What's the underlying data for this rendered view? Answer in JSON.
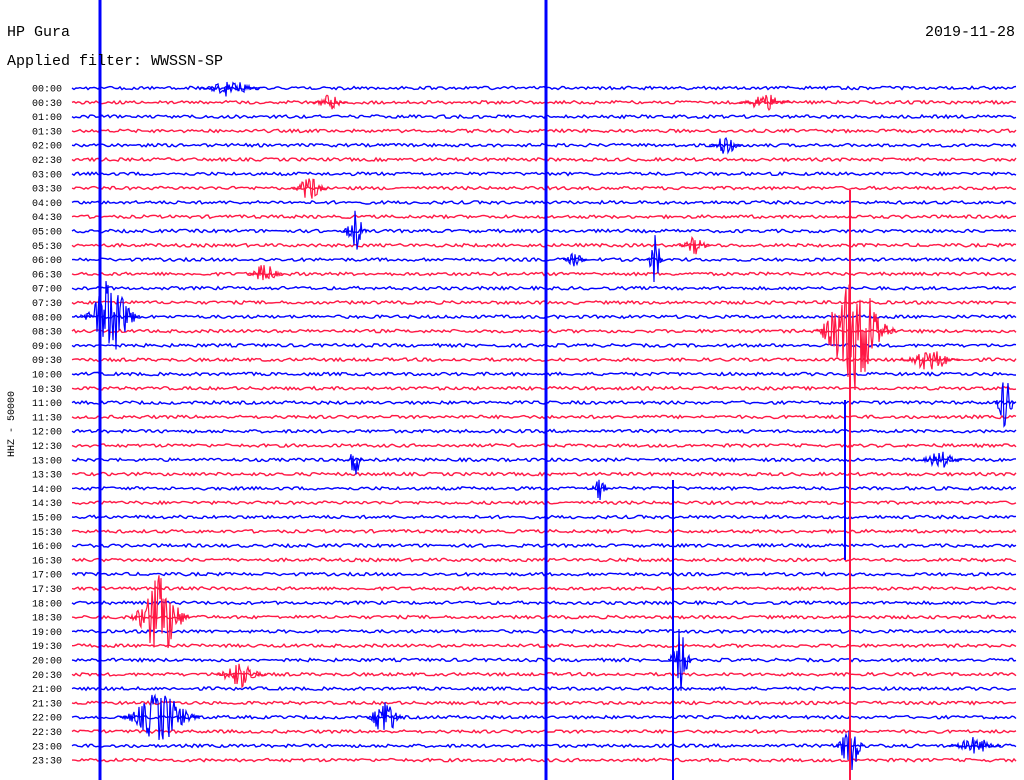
{
  "header": {
    "station": "HP Gura",
    "date": "2019-11-28",
    "filter": "Applied filter: WWSSN-SP"
  },
  "axis": {
    "channel_label": "HHZ - 50000"
  },
  "times": [
    "00:00",
    "00:30",
    "01:00",
    "01:30",
    "02:00",
    "02:30",
    "03:00",
    "03:30",
    "04:00",
    "04:30",
    "05:00",
    "05:30",
    "06:00",
    "06:30",
    "07:00",
    "07:30",
    "08:00",
    "08:30",
    "09:00",
    "09:30",
    "10:00",
    "10:30",
    "11:00",
    "11:30",
    "12:00",
    "12:30",
    "13:00",
    "13:30",
    "14:00",
    "14:30",
    "15:00",
    "15:30",
    "16:00",
    "16:30",
    "17:00",
    "17:30",
    "18:00",
    "18:30",
    "19:00",
    "19:30",
    "20:00",
    "20:30",
    "21:00",
    "21:30",
    "22:00",
    "22:30",
    "23:00",
    "23:30"
  ],
  "colors": {
    "even_trace": "#0000ff",
    "odd_trace": "#ff1744",
    "text": "#000000",
    "background": "#ffffff"
  }
}
